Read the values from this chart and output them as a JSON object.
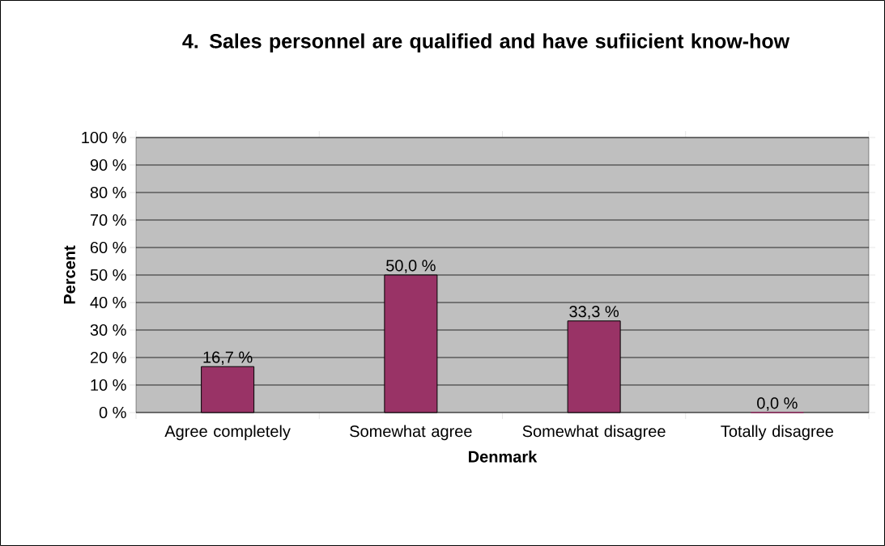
{
  "chart_data": {
    "type": "bar",
    "title": "4. Sales personnel are qualified and have sufiicient know-how",
    "xlabel": "Denmark",
    "ylabel": "Percent",
    "categories": [
      "Agree completely",
      "Somewhat agree",
      "Somewhat disagree",
      "Totally disagree"
    ],
    "values": [
      16.7,
      50.0,
      33.3,
      0.0
    ],
    "value_labels": [
      "16,7 %",
      "50,0 %",
      "33,3 %",
      "0,0 %"
    ],
    "color": "#993366",
    "ylim": [
      0,
      100
    ],
    "yticks": [
      {
        "value": 0,
        "label": "0 %"
      },
      {
        "value": 10,
        "label": "10 %"
      },
      {
        "value": 20,
        "label": "20 %"
      },
      {
        "value": 30,
        "label": "30 %"
      },
      {
        "value": 40,
        "label": "40 %"
      },
      {
        "value": 50,
        "label": "50 %"
      },
      {
        "value": 60,
        "label": "60 %"
      },
      {
        "value": 70,
        "label": "70 %"
      },
      {
        "value": 80,
        "label": "80 %"
      },
      {
        "value": 90,
        "label": "90 %"
      },
      {
        "value": 100,
        "label": "100 %"
      }
    ],
    "grid": "y"
  }
}
